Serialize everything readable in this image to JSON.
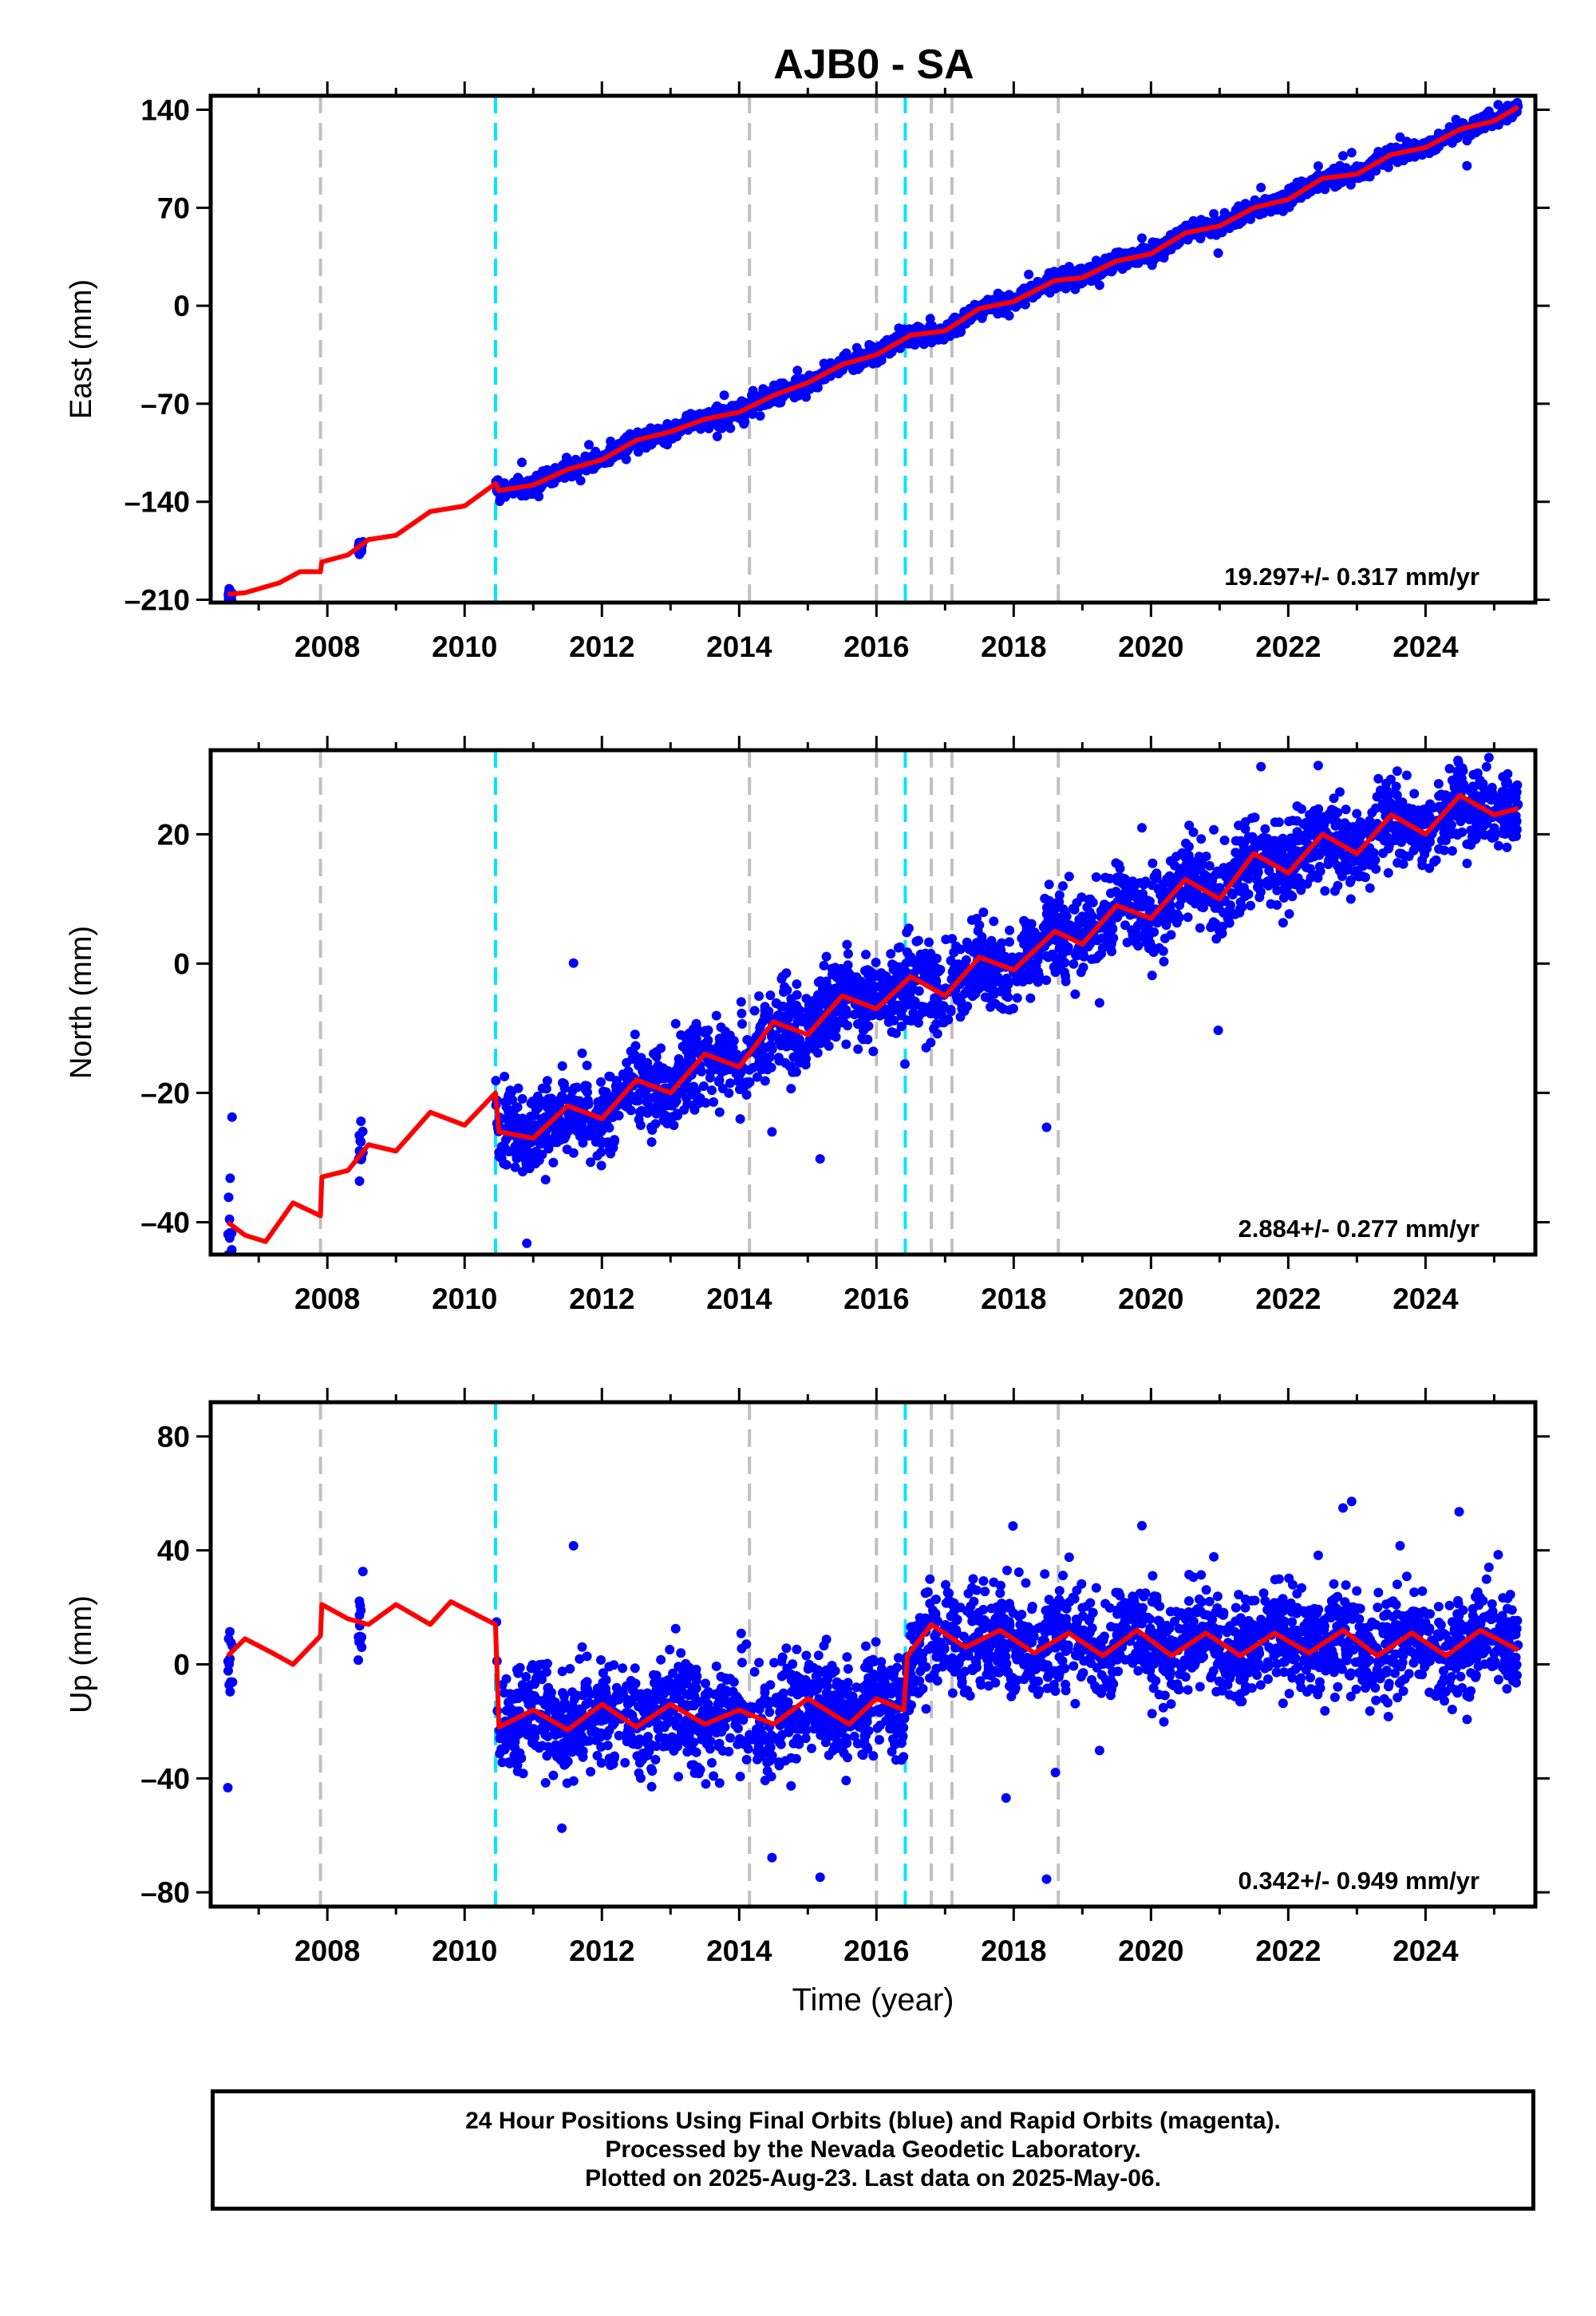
{
  "title": "AJB0 - SA",
  "colors": {
    "final_orbits": "#0000ff",
    "model": "#ff0000",
    "eq_line": "#00e5ff",
    "equip_line": "#c0c0c0"
  },
  "chart_data": [
    {
      "type": "scatter",
      "component": "East",
      "ylabel": "East (mm)",
      "xlabel": "",
      "xlim": [
        2006.3,
        2025.6
      ],
      "ylim": [
        -212,
        150
      ],
      "yticks": [
        -210,
        -140,
        -70,
        0,
        70,
        140
      ],
      "xticks": [
        2008,
        2010,
        2012,
        2014,
        2016,
        2018,
        2020,
        2022,
        2024
      ],
      "rate_label": "19.297+/- 0.317 mm/yr",
      "rate": 19.297,
      "data_segments": [
        [
          2006.55,
          2006.62
        ],
        [
          2008.45,
          2008.52
        ],
        [
          2010.45,
          2010.9
        ],
        [
          2010.9,
          2016.3
        ],
        [
          2016.3,
          2017.5
        ],
        [
          2017.5,
          2018.6
        ],
        [
          2018.6,
          2025.35
        ]
      ],
      "model_series": [
        {
          "x": 2006.55,
          "y": -206
        },
        {
          "x": 2006.8,
          "y": -205
        },
        {
          "x": 2007.3,
          "y": -198
        },
        {
          "x": 2007.6,
          "y": -190
        },
        {
          "x": 2007.9,
          "y": -190
        },
        {
          "x": 2007.92,
          "y": -183
        },
        {
          "x": 2008.3,
          "y": -178
        },
        {
          "x": 2008.6,
          "y": -167
        },
        {
          "x": 2009.0,
          "y": -164
        },
        {
          "x": 2009.5,
          "y": -147
        },
        {
          "x": 2010.0,
          "y": -143
        },
        {
          "x": 2010.45,
          "y": -127
        },
        {
          "x": 2010.5,
          "y": -132
        },
        {
          "x": 2011.0,
          "y": -128
        },
        {
          "x": 2011.5,
          "y": -117
        },
        {
          "x": 2012.0,
          "y": -110
        },
        {
          "x": 2012.5,
          "y": -96
        },
        {
          "x": 2013.0,
          "y": -90
        },
        {
          "x": 2013.5,
          "y": -81
        },
        {
          "x": 2014.0,
          "y": -76
        },
        {
          "x": 2014.5,
          "y": -64
        },
        {
          "x": 2015.0,
          "y": -55
        },
        {
          "x": 2015.5,
          "y": -42
        },
        {
          "x": 2016.0,
          "y": -35
        },
        {
          "x": 2016.5,
          "y": -21
        },
        {
          "x": 2017.0,
          "y": -18
        },
        {
          "x": 2017.5,
          "y": -2
        },
        {
          "x": 2018.0,
          "y": 3
        },
        {
          "x": 2018.6,
          "y": 18
        },
        {
          "x": 2019.0,
          "y": 20
        },
        {
          "x": 2019.5,
          "y": 32
        },
        {
          "x": 2020.0,
          "y": 37
        },
        {
          "x": 2020.5,
          "y": 52
        },
        {
          "x": 2021.0,
          "y": 57
        },
        {
          "x": 2021.5,
          "y": 70
        },
        {
          "x": 2022.0,
          "y": 76
        },
        {
          "x": 2022.5,
          "y": 91
        },
        {
          "x": 2023.0,
          "y": 94
        },
        {
          "x": 2023.5,
          "y": 108
        },
        {
          "x": 2024.0,
          "y": 113
        },
        {
          "x": 2024.5,
          "y": 126
        },
        {
          "x": 2025.0,
          "y": 132
        },
        {
          "x": 2025.35,
          "y": 142
        }
      ],
      "scatter_spread": 3
    },
    {
      "type": "scatter",
      "component": "North",
      "ylabel": "North (mm)",
      "xlabel": "",
      "xlim": [
        2006.3,
        2025.6
      ],
      "ylim": [
        -45,
        33
      ],
      "yticks": [
        -40,
        -20,
        0,
        20
      ],
      "xticks": [
        2008,
        2010,
        2012,
        2014,
        2016,
        2018,
        2020,
        2022,
        2024
      ],
      "rate_label": "2.884+/- 0.277 mm/yr",
      "rate": 2.884,
      "data_segments": [
        [
          2006.55,
          2006.62
        ],
        [
          2008.45,
          2008.52
        ],
        [
          2010.45,
          2010.9
        ],
        [
          2010.9,
          2016.3
        ],
        [
          2016.3,
          2017.5
        ],
        [
          2017.5,
          2018.6
        ],
        [
          2018.6,
          2025.35
        ]
      ],
      "model_series": [
        {
          "x": 2006.55,
          "y": -40
        },
        {
          "x": 2006.8,
          "y": -42
        },
        {
          "x": 2007.1,
          "y": -43
        },
        {
          "x": 2007.5,
          "y": -37
        },
        {
          "x": 2007.9,
          "y": -39
        },
        {
          "x": 2007.92,
          "y": -33
        },
        {
          "x": 2008.3,
          "y": -32
        },
        {
          "x": 2008.6,
          "y": -28
        },
        {
          "x": 2009.0,
          "y": -29
        },
        {
          "x": 2009.5,
          "y": -23
        },
        {
          "x": 2010.0,
          "y": -25
        },
        {
          "x": 2010.45,
          "y": -20
        },
        {
          "x": 2010.5,
          "y": -26
        },
        {
          "x": 2011.0,
          "y": -27
        },
        {
          "x": 2011.5,
          "y": -22
        },
        {
          "x": 2012.0,
          "y": -24
        },
        {
          "x": 2012.5,
          "y": -18
        },
        {
          "x": 2013.0,
          "y": -20
        },
        {
          "x": 2013.5,
          "y": -14
        },
        {
          "x": 2014.0,
          "y": -16
        },
        {
          "x": 2014.5,
          "y": -9
        },
        {
          "x": 2015.0,
          "y": -11
        },
        {
          "x": 2015.5,
          "y": -5
        },
        {
          "x": 2016.0,
          "y": -7
        },
        {
          "x": 2016.5,
          "y": -2
        },
        {
          "x": 2017.0,
          "y": -5
        },
        {
          "x": 2017.5,
          "y": 1
        },
        {
          "x": 2018.0,
          "y": -1
        },
        {
          "x": 2018.6,
          "y": 5
        },
        {
          "x": 2019.0,
          "y": 3
        },
        {
          "x": 2019.5,
          "y": 9
        },
        {
          "x": 2020.0,
          "y": 7
        },
        {
          "x": 2020.5,
          "y": 13
        },
        {
          "x": 2021.0,
          "y": 10
        },
        {
          "x": 2021.5,
          "y": 17
        },
        {
          "x": 2022.0,
          "y": 14
        },
        {
          "x": 2022.5,
          "y": 20
        },
        {
          "x": 2023.0,
          "y": 17
        },
        {
          "x": 2023.5,
          "y": 23
        },
        {
          "x": 2024.0,
          "y": 20
        },
        {
          "x": 2024.5,
          "y": 26
        },
        {
          "x": 2025.0,
          "y": 23
        },
        {
          "x": 2025.35,
          "y": 24
        }
      ],
      "scatter_spread": 3.2
    },
    {
      "type": "scatter",
      "component": "Up",
      "ylabel": "Up (mm)",
      "xlabel": "Time (year)",
      "xlim": [
        2006.3,
        2025.6
      ],
      "ylim": [
        -85,
        92
      ],
      "yticks": [
        -80,
        -40,
        0,
        40,
        80
      ],
      "xticks": [
        2008,
        2010,
        2012,
        2014,
        2016,
        2018,
        2020,
        2022,
        2024
      ],
      "rate_label": "0.342+/- 0.949 mm/yr",
      "rate": 0.342,
      "data_segments": [
        [
          2006.55,
          2006.62
        ],
        [
          2008.45,
          2008.52
        ],
        [
          2010.45,
          2010.9
        ],
        [
          2010.9,
          2016.3
        ],
        [
          2016.3,
          2017.5
        ],
        [
          2017.5,
          2018.6
        ],
        [
          2018.6,
          2025.35
        ]
      ],
      "model_series": [
        {
          "x": 2006.55,
          "y": 3
        },
        {
          "x": 2006.8,
          "y": 9
        },
        {
          "x": 2007.2,
          "y": 4
        },
        {
          "x": 2007.5,
          "y": 0
        },
        {
          "x": 2007.9,
          "y": 10
        },
        {
          "x": 2007.92,
          "y": 21
        },
        {
          "x": 2008.3,
          "y": 16
        },
        {
          "x": 2008.6,
          "y": 14
        },
        {
          "x": 2009.0,
          "y": 21
        },
        {
          "x": 2009.5,
          "y": 14
        },
        {
          "x": 2009.8,
          "y": 22
        },
        {
          "x": 2010.45,
          "y": 14
        },
        {
          "x": 2010.5,
          "y": -22
        },
        {
          "x": 2011.0,
          "y": -16
        },
        {
          "x": 2011.5,
          "y": -23
        },
        {
          "x": 2012.0,
          "y": -14
        },
        {
          "x": 2012.5,
          "y": -22
        },
        {
          "x": 2013.0,
          "y": -14
        },
        {
          "x": 2013.5,
          "y": -21
        },
        {
          "x": 2014.0,
          "y": -16
        },
        {
          "x": 2014.5,
          "y": -21
        },
        {
          "x": 2015.0,
          "y": -12
        },
        {
          "x": 2015.6,
          "y": -21
        },
        {
          "x": 2016.0,
          "y": -12
        },
        {
          "x": 2016.4,
          "y": -16
        },
        {
          "x": 2016.45,
          "y": 3
        },
        {
          "x": 2016.8,
          "y": 14
        },
        {
          "x": 2017.3,
          "y": 6
        },
        {
          "x": 2017.8,
          "y": 12
        },
        {
          "x": 2018.3,
          "y": 4
        },
        {
          "x": 2018.8,
          "y": 11
        },
        {
          "x": 2019.3,
          "y": 3
        },
        {
          "x": 2019.8,
          "y": 12
        },
        {
          "x": 2020.3,
          "y": 3
        },
        {
          "x": 2020.8,
          "y": 11
        },
        {
          "x": 2021.3,
          "y": 3
        },
        {
          "x": 2021.8,
          "y": 11
        },
        {
          "x": 2022.3,
          "y": 4
        },
        {
          "x": 2022.8,
          "y": 12
        },
        {
          "x": 2023.3,
          "y": 3
        },
        {
          "x": 2023.8,
          "y": 11
        },
        {
          "x": 2024.3,
          "y": 3
        },
        {
          "x": 2024.8,
          "y": 12
        },
        {
          "x": 2025.35,
          "y": 5
        }
      ],
      "scatter_spread": 9
    }
  ],
  "equipment_change_lines": [
    2007.9,
    2014.15,
    2016.0,
    2016.8,
    2017.1,
    2018.65
  ],
  "earthquake_lines": [
    2010.45,
    2016.42
  ],
  "footer": {
    "line1": "24 Hour Positions Using Final Orbits (blue) and Rapid Orbits (magenta).",
    "line2": "Processed by the Nevada Geodetic Laboratory.",
    "line3": "Plotted on 2025-Aug-23. Last data on 2025-May-06."
  }
}
